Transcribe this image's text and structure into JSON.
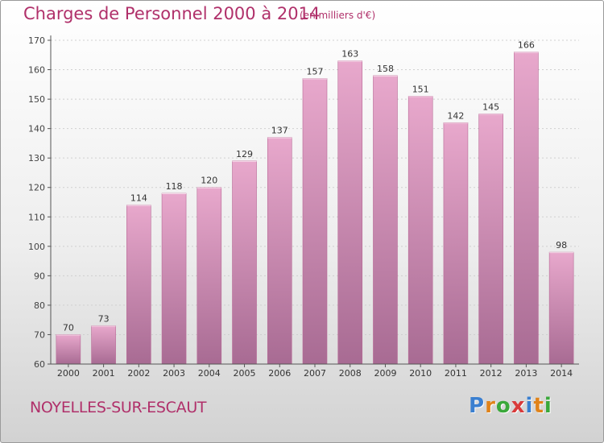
{
  "title": "Charges de Personnel 2000 à 2014",
  "subtitle": "(en milliers d'€)",
  "place": "NOYELLES-SUR-ESCAUT",
  "logo": {
    "text": "Proxiti",
    "letter_colors": [
      "#3a7fd0",
      "#e0831a",
      "#3aa83a",
      "#d93a3a",
      "#3a7fd0",
      "#e0831a",
      "#3aa83a"
    ]
  },
  "colors": {
    "accent": "#b0306a",
    "bar_top": "#e8a8cc",
    "bar_bottom": "#a86b93",
    "bar_edge": "#b86a96"
  },
  "chart_data": {
    "type": "bar",
    "title": "Charges de Personnel 2000 à 2014",
    "xlabel": "",
    "ylabel": "",
    "categories": [
      "2000",
      "2001",
      "2002",
      "2003",
      "2004",
      "2005",
      "2006",
      "2007",
      "2008",
      "2009",
      "2010",
      "2011",
      "2012",
      "2013",
      "2014"
    ],
    "values": [
      70,
      73,
      114,
      118,
      120,
      129,
      137,
      157,
      163,
      158,
      151,
      142,
      145,
      166,
      98
    ],
    "ylim": [
      60,
      170
    ],
    "yticks": [
      60,
      70,
      80,
      90,
      100,
      110,
      120,
      130,
      140,
      150,
      160,
      170
    ],
    "grid": true,
    "data_labels": true
  }
}
